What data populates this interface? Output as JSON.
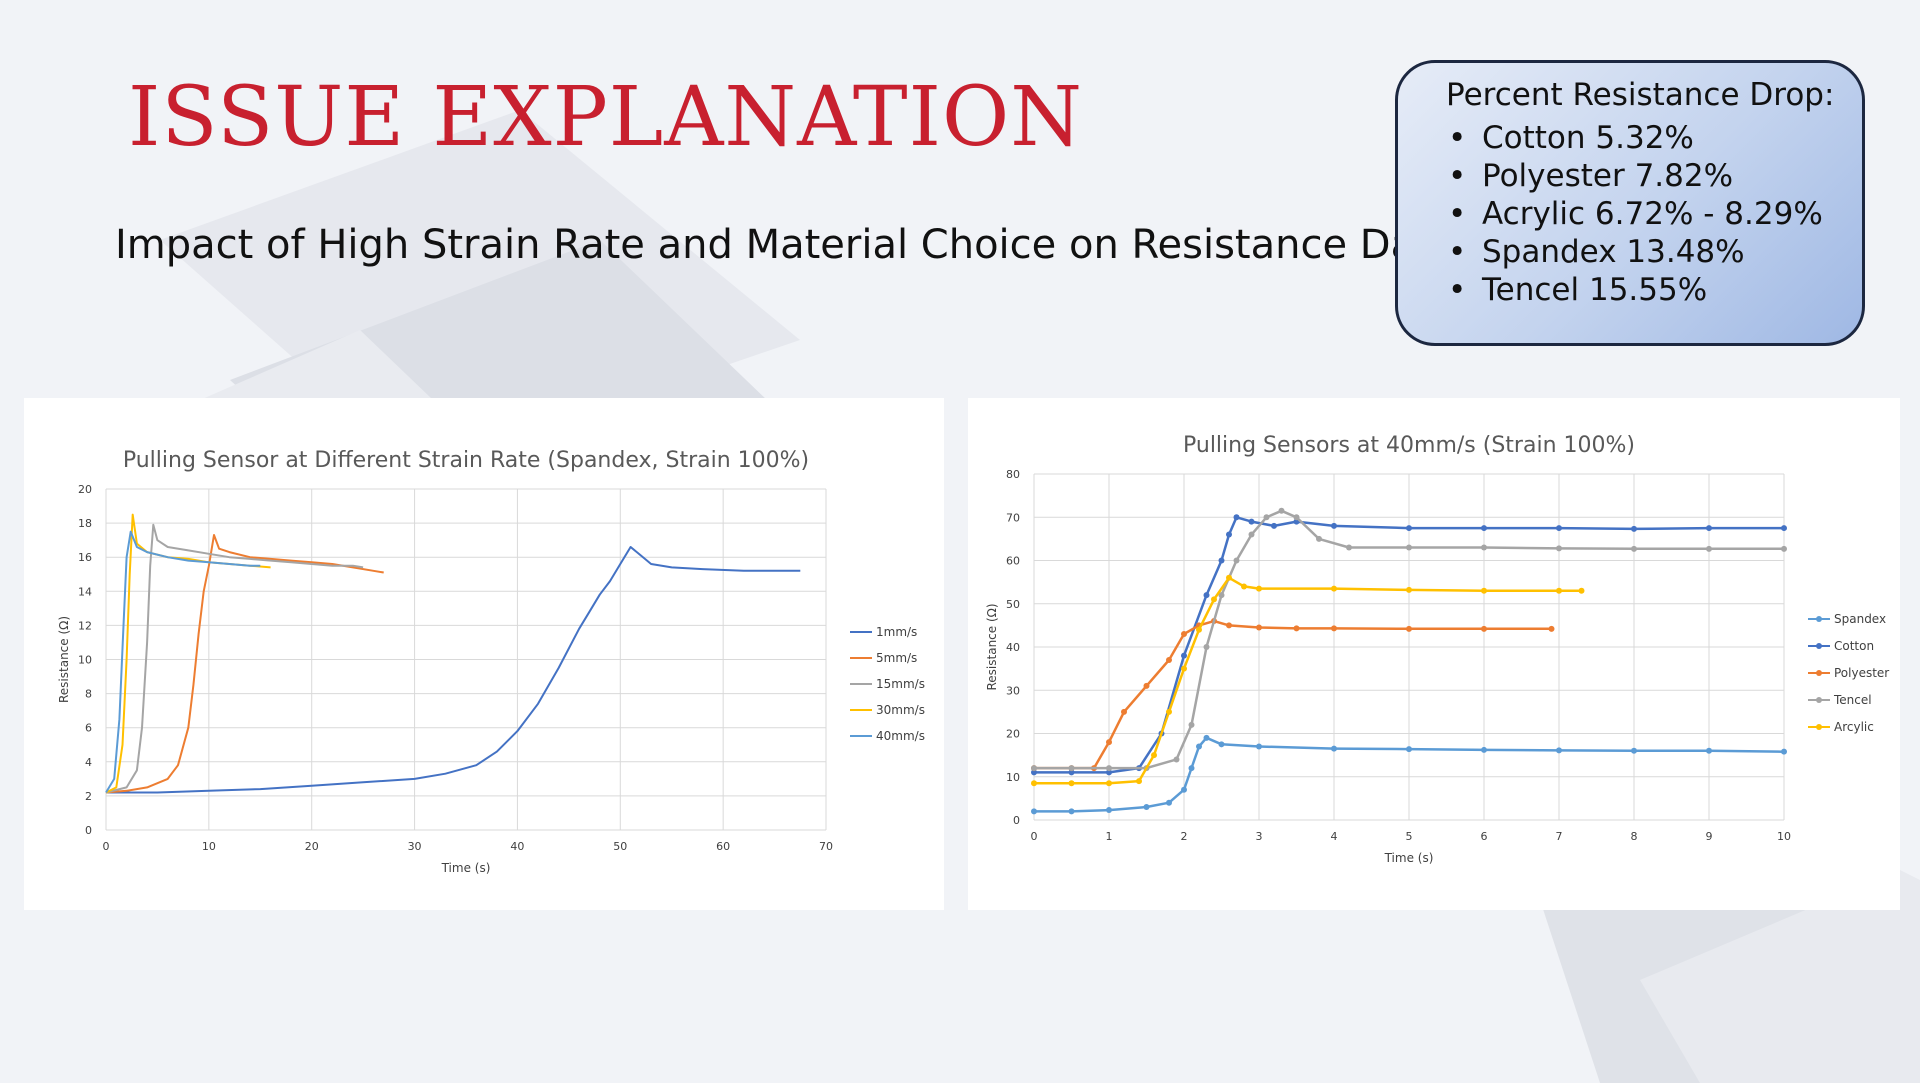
{
  "slide": {
    "title": "ISSUE EXPLANATION",
    "subtitle": "Impact of High Strain Rate and Material Choice on Resistance Data:"
  },
  "info_box": {
    "heading": "Percent Resistance Drop:",
    "bullet_glyph": "•",
    "items": [
      "Cotton 5.32%",
      "Polyester 7.82%",
      "Acrylic 6.72% - 8.29%",
      "Spandex 13.48%",
      "Tencel 15.55%"
    ]
  },
  "colors": {
    "title": "#c8202f",
    "blue": "#4472c4",
    "orange": "#ed7d31",
    "gray": "#a5a5a5",
    "yellow": "#ffc000",
    "light_blue": "#5b9bd5"
  },
  "chart_data": [
    {
      "type": "line",
      "title": "Pulling Sensor at Different Strain Rate (Spandex, Strain 100%)",
      "xlabel": "Time (s)",
      "ylabel": "Resistance (Ω)",
      "xlim": [
        0,
        70
      ],
      "ylim": [
        0,
        20
      ],
      "xticks": [
        0,
        10,
        20,
        30,
        40,
        50,
        60,
        70
      ],
      "yticks": [
        0,
        2,
        4,
        6,
        8,
        10,
        12,
        14,
        16,
        18,
        20
      ],
      "grid": true,
      "legend": "right",
      "series": [
        {
          "name": "1mm/s",
          "color": "#4472c4",
          "x": [
            0,
            5,
            10,
            15,
            20,
            25,
            30,
            33,
            36,
            38,
            40,
            42,
            44,
            46,
            47,
            48,
            49,
            50,
            51,
            52,
            53,
            55,
            58,
            62,
            65,
            67.5
          ],
          "y": [
            2.2,
            2.2,
            2.3,
            2.4,
            2.6,
            2.8,
            3.0,
            3.3,
            3.8,
            4.6,
            5.8,
            7.4,
            9.5,
            11.8,
            12.8,
            13.8,
            14.6,
            15.6,
            16.6,
            16.1,
            15.6,
            15.4,
            15.3,
            15.2,
            15.2,
            15.2
          ]
        },
        {
          "name": "5mm/s",
          "color": "#ed7d31",
          "x": [
            0,
            2,
            4,
            6,
            7,
            8,
            8.5,
            9,
            9.5,
            10,
            10.5,
            11,
            12,
            14,
            16,
            18,
            20,
            22,
            24,
            26,
            27
          ],
          "y": [
            2.2,
            2.3,
            2.5,
            3.0,
            3.8,
            6.0,
            8.5,
            11.5,
            14.0,
            15.5,
            17.3,
            16.5,
            16.3,
            16.0,
            15.9,
            15.8,
            15.7,
            15.6,
            15.4,
            15.2,
            15.1
          ]
        },
        {
          "name": "15mm/s",
          "color": "#a5a5a5",
          "x": [
            0,
            2,
            3,
            3.5,
            4,
            4.3,
            4.6,
            5,
            6,
            8,
            10,
            12,
            14,
            16,
            18,
            20,
            22,
            24,
            25
          ],
          "y": [
            2.2,
            2.5,
            3.5,
            6.0,
            11.0,
            15.5,
            17.9,
            17.0,
            16.6,
            16.4,
            16.2,
            16.0,
            15.9,
            15.8,
            15.7,
            15.6,
            15.5,
            15.5,
            15.4
          ]
        },
        {
          "name": "30mm/s",
          "color": "#ffc000",
          "x": [
            0,
            1,
            1.6,
            2,
            2.3,
            2.6,
            3,
            4,
            6,
            8,
            10,
            12,
            14,
            16
          ],
          "y": [
            2.2,
            2.5,
            5.0,
            10.0,
            15.0,
            18.5,
            16.8,
            16.3,
            16.0,
            15.9,
            15.7,
            15.6,
            15.5,
            15.4
          ]
        },
        {
          "name": "40mm/s",
          "color": "#5b9bd5",
          "x": [
            0,
            0.8,
            1.3,
            1.7,
            2,
            2.4,
            3,
            4,
            6,
            8,
            10,
            12,
            14,
            15
          ],
          "y": [
            2.2,
            3.0,
            6.5,
            12.0,
            16.0,
            17.5,
            16.6,
            16.3,
            16.0,
            15.8,
            15.7,
            15.6,
            15.5,
            15.5
          ]
        }
      ]
    },
    {
      "type": "line",
      "title": "Pulling Sensors at 40mm/s (Strain 100%)",
      "xlabel": "Time (s)",
      "ylabel": "Resistance (Ω)",
      "xlim": [
        0,
        10
      ],
      "ylim": [
        0,
        80
      ],
      "xticks": [
        0,
        1,
        2,
        3,
        4,
        5,
        6,
        7,
        8,
        9,
        10
      ],
      "yticks": [
        0,
        10,
        20,
        30,
        40,
        50,
        60,
        70,
        80
      ],
      "grid": true,
      "legend": "right",
      "series": [
        {
          "name": "Spandex",
          "color": "#5b9bd5",
          "x": [
            0,
            0.5,
            1,
            1.5,
            1.8,
            2.0,
            2.1,
            2.2,
            2.3,
            2.5,
            3,
            4,
            5,
            6,
            7,
            8,
            9,
            10
          ],
          "y": [
            2,
            2,
            2.3,
            3,
            4,
            7,
            12,
            17,
            19,
            17.5,
            17,
            16.5,
            16.4,
            16.2,
            16.1,
            16,
            16,
            15.8
          ]
        },
        {
          "name": "Cotton",
          "color": "#4472c4",
          "x": [
            0,
            0.5,
            1,
            1.4,
            1.7,
            2.0,
            2.3,
            2.5,
            2.6,
            2.7,
            2.9,
            3.2,
            3.5,
            4,
            5,
            6,
            7,
            8,
            9,
            10
          ],
          "y": [
            11,
            11,
            11,
            12,
            20,
            38,
            52,
            60,
            66,
            70,
            69,
            68,
            69,
            68,
            67.5,
            67.5,
            67.5,
            67.3,
            67.5,
            67.5
          ]
        },
        {
          "name": "Polyester",
          "color": "#ed7d31",
          "x": [
            0,
            0.5,
            0.8,
            1.0,
            1.2,
            1.5,
            1.8,
            2.0,
            2.2,
            2.4,
            2.6,
            3,
            3.5,
            4,
            5,
            6,
            6.9
          ],
          "y": [
            12,
            12,
            12,
            18,
            25,
            31,
            37,
            43,
            45,
            46,
            45,
            44.5,
            44.3,
            44.3,
            44.2,
            44.2,
            44.2
          ]
        },
        {
          "name": "Tencel",
          "color": "#a5a5a5",
          "x": [
            0,
            0.5,
            1,
            1.5,
            1.9,
            2.1,
            2.3,
            2.5,
            2.7,
            2.9,
            3.1,
            3.3,
            3.5,
            3.8,
            4.2,
            5,
            6,
            7,
            8,
            9,
            10
          ],
          "y": [
            12,
            12,
            12,
            12,
            14,
            22,
            40,
            52,
            60,
            66,
            70,
            71.5,
            70,
            65,
            63,
            63,
            63,
            62.8,
            62.7,
            62.7,
            62.7
          ]
        },
        {
          "name": "Arcylic",
          "color": "#ffc000",
          "x": [
            0,
            0.5,
            1,
            1.4,
            1.6,
            1.8,
            2.0,
            2.2,
            2.4,
            2.6,
            2.8,
            3,
            4,
            5,
            6,
            7,
            7.3
          ],
          "y": [
            8.5,
            8.5,
            8.5,
            9,
            15,
            25,
            35,
            44,
            51,
            56,
            54,
            53.5,
            53.5,
            53.2,
            53,
            53,
            53
          ]
        }
      ]
    }
  ]
}
